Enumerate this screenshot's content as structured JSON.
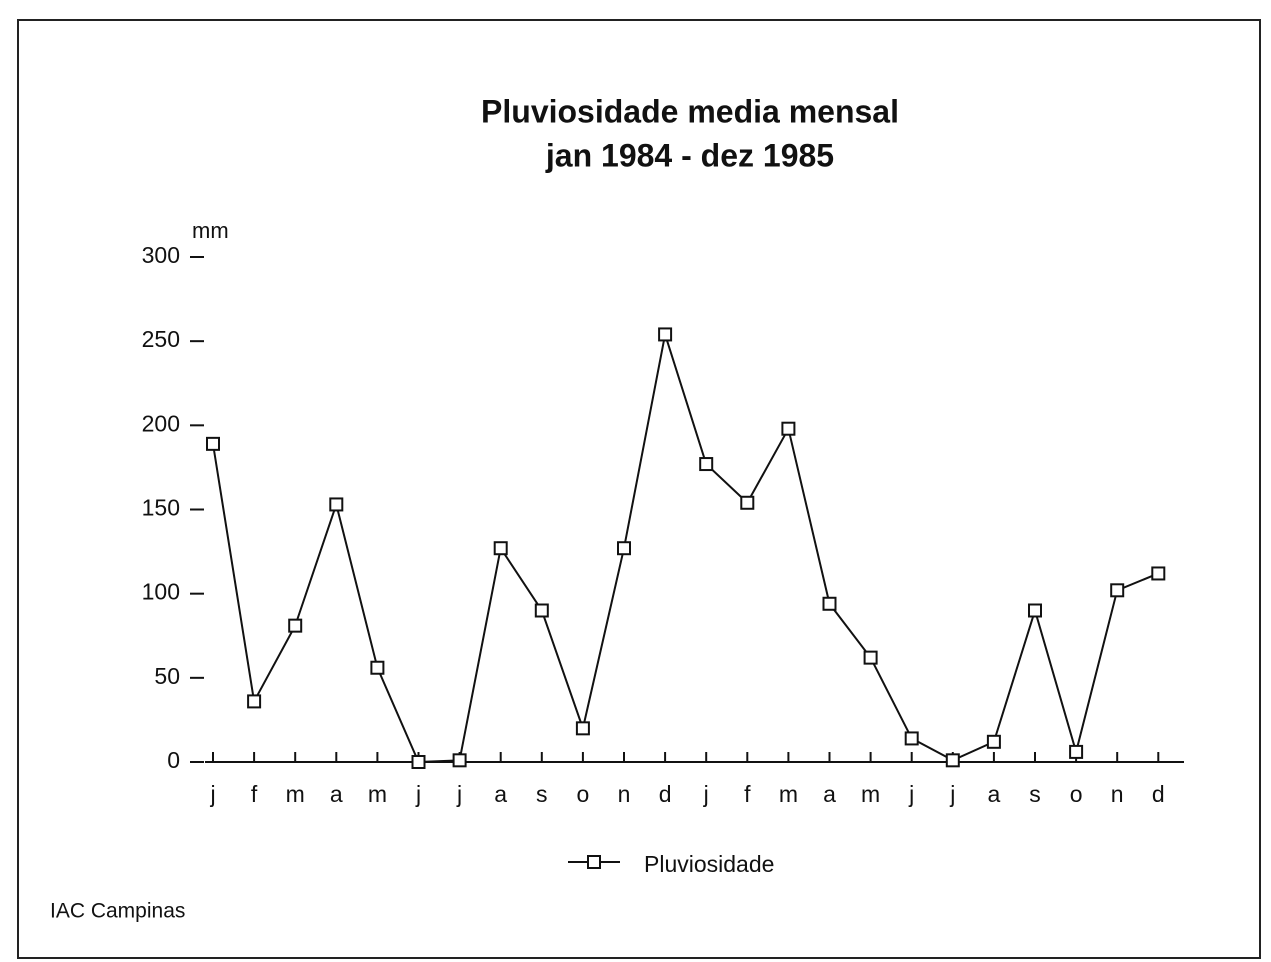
{
  "chart_data": {
    "type": "line",
    "title": "Pluviosidade media mensal",
    "subtitle": "jan 1984 - dez 1985",
    "y_label": "mm",
    "annotation": "IAC Campinas",
    "categories": [
      "j",
      "f",
      "m",
      "a",
      "m",
      "j",
      "j",
      "a",
      "s",
      "o",
      "n",
      "d",
      "j",
      "f",
      "m",
      "a",
      "m",
      "j",
      "j",
      "a",
      "s",
      "o",
      "n",
      "d"
    ],
    "series": [
      {
        "name": "Pluviosidade",
        "color": "#111111",
        "values": [
          189,
          36,
          81,
          153,
          56,
          0,
          1,
          127,
          90,
          20,
          127,
          254,
          177,
          154,
          198,
          94,
          62,
          14,
          1,
          12,
          90,
          6,
          102,
          112
        ]
      }
    ],
    "ylim": [
      0,
      300
    ],
    "yticks": [
      0,
      50,
      100,
      150,
      200,
      250,
      300
    ],
    "legend": "bottom"
  }
}
